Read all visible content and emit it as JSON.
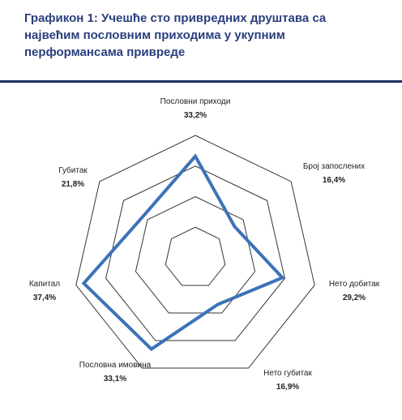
{
  "chart_data": {
    "type": "radar",
    "title": "Графикон 1: Учешће сто привредних друштава са највећим пословним приходима у укупним перформансама привреде",
    "categories": [
      "Пословни приходи",
      "Број запослених",
      "Нето добитак",
      "Нето губитак",
      "Пословна имовина",
      "Капитал",
      "Губитак"
    ],
    "values": [
      33.2,
      16.4,
      29.2,
      16.9,
      33.1,
      37.4,
      21.8
    ],
    "value_labels": [
      "33,2%",
      "16,4%",
      "29,2%",
      "16,9%",
      "33,1%",
      "37,4%",
      "21,8%"
    ],
    "color": "#3d72b8",
    "ylim": [
      0,
      40
    ],
    "yticks": [
      10,
      20,
      30,
      40
    ],
    "grid": true
  }
}
